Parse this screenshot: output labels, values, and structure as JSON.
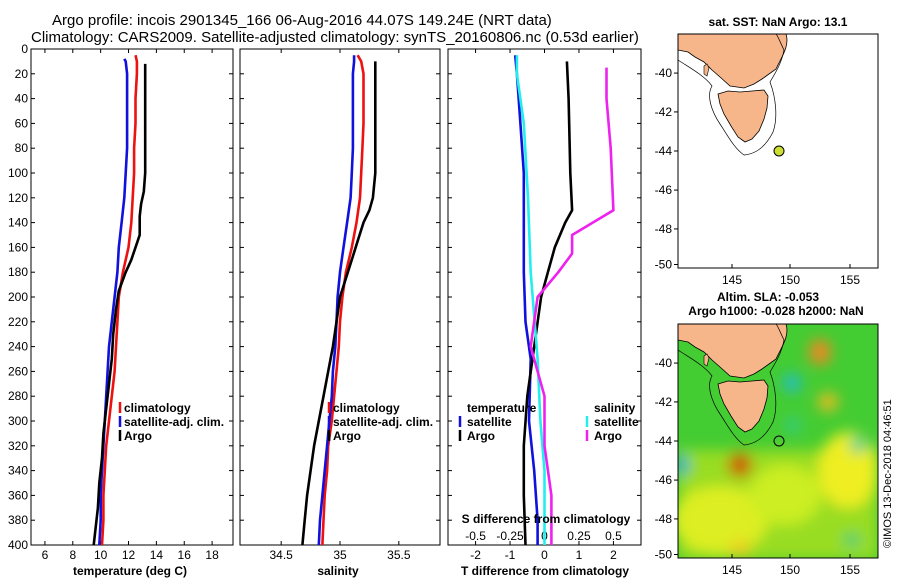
{
  "header": {
    "title_line1": "Argo profile: incois 2901345_166 06-Aug-2016 44.07S 149.24E (NRT data)",
    "title_line2": "Climatology: CARS2009. Satellite-adjusted climatology: synTS_20160806.nc (0.53d earlier)"
  },
  "colors": {
    "climatology": "#ee1111",
    "satellite": "#1111dd",
    "argo": "#000000",
    "sal_satellite": "#22eeee",
    "sal_argo": "#ee22ee",
    "land": "#f7b58a"
  },
  "chart_data": [
    {
      "type": "line",
      "id": "temperature",
      "xlabel": "temperature (deg C)",
      "ylabel": "",
      "xlim": [
        5,
        19.5
      ],
      "ylim": [
        400,
        0
      ],
      "xticks": [
        6,
        8,
        10,
        12,
        14,
        16,
        18
      ],
      "xtick_labels": [
        "6",
        "8",
        "10",
        "12",
        "14",
        "16",
        "18"
      ],
      "yticks": [
        0,
        20,
        40,
        60,
        80,
        100,
        120,
        140,
        160,
        180,
        200,
        220,
        240,
        260,
        280,
        300,
        320,
        340,
        360,
        380,
        400
      ],
      "ytick_labels": [
        "0",
        "20",
        "40",
        "60",
        "80",
        "100",
        "120",
        "140",
        "160",
        "180",
        "200",
        "220",
        "240",
        "260",
        "280",
        "300",
        "320",
        "340",
        "360",
        "380",
        "400"
      ],
      "legend": [
        "climatology",
        "satellite-adj. clim.",
        "Argo"
      ],
      "series": [
        {
          "name": "climatology",
          "color": "#ee1111",
          "points": [
            [
              12.5,
              5
            ],
            [
              12.6,
              10
            ],
            [
              12.6,
              20
            ],
            [
              12.5,
              40
            ],
            [
              12.5,
              60
            ],
            [
              12.4,
              80
            ],
            [
              12.4,
              100
            ],
            [
              12.3,
              120
            ],
            [
              12.2,
              140
            ],
            [
              12.0,
              160
            ],
            [
              11.6,
              180
            ],
            [
              11.3,
              200
            ],
            [
              11.2,
              220
            ],
            [
              11.1,
              240
            ],
            [
              11.0,
              260
            ],
            [
              10.8,
              280
            ],
            [
              10.6,
              300
            ],
            [
              10.4,
              320
            ],
            [
              10.3,
              340
            ],
            [
              10.2,
              360
            ],
            [
              10.2,
              380
            ],
            [
              10.1,
              400
            ]
          ]
        },
        {
          "name": "satellite-adj. clim.",
          "color": "#1111dd",
          "points": [
            [
              11.7,
              8
            ],
            [
              11.8,
              10
            ],
            [
              11.9,
              20
            ],
            [
              11.9,
              40
            ],
            [
              11.9,
              60
            ],
            [
              11.9,
              80
            ],
            [
              11.8,
              100
            ],
            [
              11.7,
              120
            ],
            [
              11.5,
              140
            ],
            [
              11.3,
              160
            ],
            [
              11.2,
              180
            ],
            [
              11.0,
              200
            ],
            [
              10.8,
              220
            ],
            [
              10.6,
              240
            ],
            [
              10.5,
              260
            ],
            [
              10.4,
              280
            ],
            [
              10.3,
              300
            ],
            [
              10.2,
              320
            ],
            [
              10.1,
              340
            ],
            [
              10.0,
              360
            ],
            [
              10.0,
              380
            ],
            [
              9.9,
              400
            ]
          ]
        },
        {
          "name": "Argo",
          "color": "#000000",
          "points": [
            [
              13.2,
              12
            ],
            [
              13.2,
              20
            ],
            [
              13.2,
              40
            ],
            [
              13.2,
              60
            ],
            [
              13.2,
              80
            ],
            [
              13.2,
              100
            ],
            [
              13.1,
              115
            ],
            [
              12.9,
              125
            ],
            [
              12.8,
              135
            ],
            [
              12.8,
              150
            ],
            [
              12.5,
              160
            ],
            [
              12.2,
              170
            ],
            [
              11.8,
              180
            ],
            [
              11.3,
              195
            ],
            [
              11.1,
              210
            ],
            [
              10.9,
              230
            ],
            [
              10.8,
              250
            ],
            [
              10.6,
              270
            ],
            [
              10.4,
              290
            ],
            [
              10.2,
              310
            ],
            [
              10.1,
              330
            ],
            [
              9.9,
              350
            ],
            [
              9.8,
              370
            ],
            [
              9.6,
              390
            ],
            [
              9.5,
              400
            ]
          ]
        }
      ]
    },
    {
      "type": "line",
      "id": "salinity",
      "xlabel": "salinity",
      "ylabel": "",
      "xlim": [
        34.15,
        35.85
      ],
      "ylim": [
        400,
        0
      ],
      "xticks": [
        34.5,
        35,
        35.5
      ],
      "xtick_labels": [
        "34.5",
        "35",
        "35.5"
      ],
      "legend": [
        "climatology",
        "satellite-adj. clim.",
        "Argo"
      ],
      "series": [
        {
          "name": "climatology",
          "color": "#ee1111",
          "points": [
            [
              35.15,
              5
            ],
            [
              35.18,
              10
            ],
            [
              35.2,
              20
            ],
            [
              35.2,
              40
            ],
            [
              35.2,
              60
            ],
            [
              35.19,
              80
            ],
            [
              35.18,
              100
            ],
            [
              35.17,
              120
            ],
            [
              35.14,
              140
            ],
            [
              35.1,
              160
            ],
            [
              35.05,
              180
            ],
            [
              35.02,
              200
            ],
            [
              35.0,
              220
            ],
            [
              34.99,
              240
            ],
            [
              34.97,
              260
            ],
            [
              34.95,
              280
            ],
            [
              34.93,
              300
            ],
            [
              34.9,
              320
            ],
            [
              34.89,
              340
            ],
            [
              34.87,
              360
            ],
            [
              34.86,
              380
            ],
            [
              34.85,
              400
            ]
          ]
        },
        {
          "name": "satellite-adj. clim.",
          "color": "#1111dd",
          "points": [
            [
              35.12,
              5
            ],
            [
              35.12,
              10
            ],
            [
              35.11,
              20
            ],
            [
              35.11,
              40
            ],
            [
              35.11,
              60
            ],
            [
              35.11,
              80
            ],
            [
              35.1,
              100
            ],
            [
              35.09,
              120
            ],
            [
              35.06,
              140
            ],
            [
              35.03,
              160
            ],
            [
              35.0,
              180
            ],
            [
              34.98,
              200
            ],
            [
              34.97,
              220
            ],
            [
              34.96,
              240
            ],
            [
              34.94,
              260
            ],
            [
              34.93,
              280
            ],
            [
              34.91,
              300
            ],
            [
              34.89,
              320
            ],
            [
              34.87,
              340
            ],
            [
              34.85,
              360
            ],
            [
              34.83,
              380
            ],
            [
              34.82,
              400
            ]
          ]
        },
        {
          "name": "Argo",
          "color": "#000000",
          "points": [
            [
              35.3,
              10
            ],
            [
              35.3,
              20
            ],
            [
              35.3,
              40
            ],
            [
              35.3,
              60
            ],
            [
              35.3,
              80
            ],
            [
              35.3,
              100
            ],
            [
              35.28,
              120
            ],
            [
              35.25,
              130
            ],
            [
              35.2,
              140
            ],
            [
              35.15,
              155
            ],
            [
              35.1,
              170
            ],
            [
              35.05,
              185
            ],
            [
              35.0,
              200
            ],
            [
              34.97,
              220
            ],
            [
              34.94,
              240
            ],
            [
              34.9,
              260
            ],
            [
              34.86,
              280
            ],
            [
              34.82,
              300
            ],
            [
              34.78,
              320
            ],
            [
              34.75,
              340
            ],
            [
              34.72,
              360
            ],
            [
              34.7,
              380
            ],
            [
              34.68,
              400
            ]
          ]
        }
      ]
    },
    {
      "type": "line",
      "id": "difference",
      "xlabel": "T difference from climatology",
      "xlabel_top": "S difference from climatology",
      "xlim": [
        -2.8,
        2.8
      ],
      "ylim": [
        400,
        0
      ],
      "xticks": [
        -2,
        -1,
        0,
        1,
        2
      ],
      "xtick_labels": [
        "-2",
        "-1",
        "0",
        "1",
        "2"
      ],
      "s_xticks": [
        -0.5,
        -0.25,
        0,
        0.25,
        0.5
      ],
      "s_xtick_labels": [
        "-0.5",
        "-0.25",
        "0",
        "0.25",
        "0.5"
      ],
      "legend_temperature": {
        "title": "temperature",
        "items": [
          "satellite",
          "Argo"
        ]
      },
      "legend_salinity": {
        "title": "salinity",
        "items": [
          "satellite",
          "Argo"
        ]
      },
      "series": [
        {
          "name": "temperature satellite",
          "color": "#1111dd",
          "points": [
            [
              -0.85,
              5
            ],
            [
              -0.8,
              20
            ],
            [
              -0.7,
              60
            ],
            [
              -0.6,
              100
            ],
            [
              -0.6,
              140
            ],
            [
              -0.6,
              180
            ],
            [
              -0.55,
              220
            ],
            [
              -0.4,
              250
            ],
            [
              -0.45,
              300
            ],
            [
              -0.3,
              340
            ],
            [
              -0.2,
              380
            ],
            [
              -0.2,
              400
            ]
          ]
        },
        {
          "name": "temperature Argo",
          "color": "#000000",
          "points": [
            [
              0.65,
              10
            ],
            [
              0.7,
              40
            ],
            [
              0.75,
              100
            ],
            [
              0.8,
              130
            ],
            [
              0.6,
              140
            ],
            [
              0.3,
              160
            ],
            [
              0.1,
              180
            ],
            [
              -0.1,
              200
            ],
            [
              -0.3,
              240
            ],
            [
              -0.5,
              280
            ],
            [
              -0.6,
              320
            ],
            [
              -0.6,
              360
            ],
            [
              -0.55,
              400
            ]
          ]
        },
        {
          "name": "salinity satellite",
          "color": "#22eeee",
          "points": [
            [
              -0.2,
              5
            ],
            [
              -0.2,
              20
            ],
            [
              -0.15,
              60
            ],
            [
              -0.12,
              120
            ],
            [
              -0.1,
              180
            ],
            [
              -0.05,
              250
            ],
            [
              -0.03,
              300
            ],
            [
              0.0,
              340
            ],
            [
              0.0,
              400
            ]
          ]
        },
        {
          "name": "salinity Argo",
          "color": "#ee22ee",
          "points": [
            [
              0.45,
              15
            ],
            [
              0.45,
              40
            ],
            [
              0.48,
              80
            ],
            [
              0.5,
              130
            ],
            [
              0.2,
              150
            ],
            [
              0.2,
              165
            ],
            [
              0.1,
              180
            ],
            [
              -0.05,
              200
            ],
            [
              -0.1,
              240
            ],
            [
              0.0,
              280
            ],
            [
              0.0,
              320
            ],
            [
              0.05,
              360
            ],
            [
              0.05,
              400
            ]
          ]
        }
      ]
    }
  ],
  "maps": {
    "sst": {
      "title": "sat. SST: NaN Argo: 13.1",
      "xticks": [
        "145",
        "150",
        "155"
      ],
      "yticks": [
        "-40",
        "-42",
        "-44",
        "-46",
        "-48",
        "-50"
      ]
    },
    "sla": {
      "title_line1": "Altim. SLA: -0.053",
      "title_line2": "Argo h1000: -0.028 h2000: NaN",
      "xticks": [
        "145",
        "150",
        "155"
      ],
      "yticks": [
        "-40",
        "-42",
        "-44",
        "-46",
        "-48",
        "-50"
      ]
    },
    "argo_position": {
      "lon": 149.24,
      "lat": -44.07
    }
  },
  "copyright": "©IMOS 13-Dec-2018 04:46:51"
}
